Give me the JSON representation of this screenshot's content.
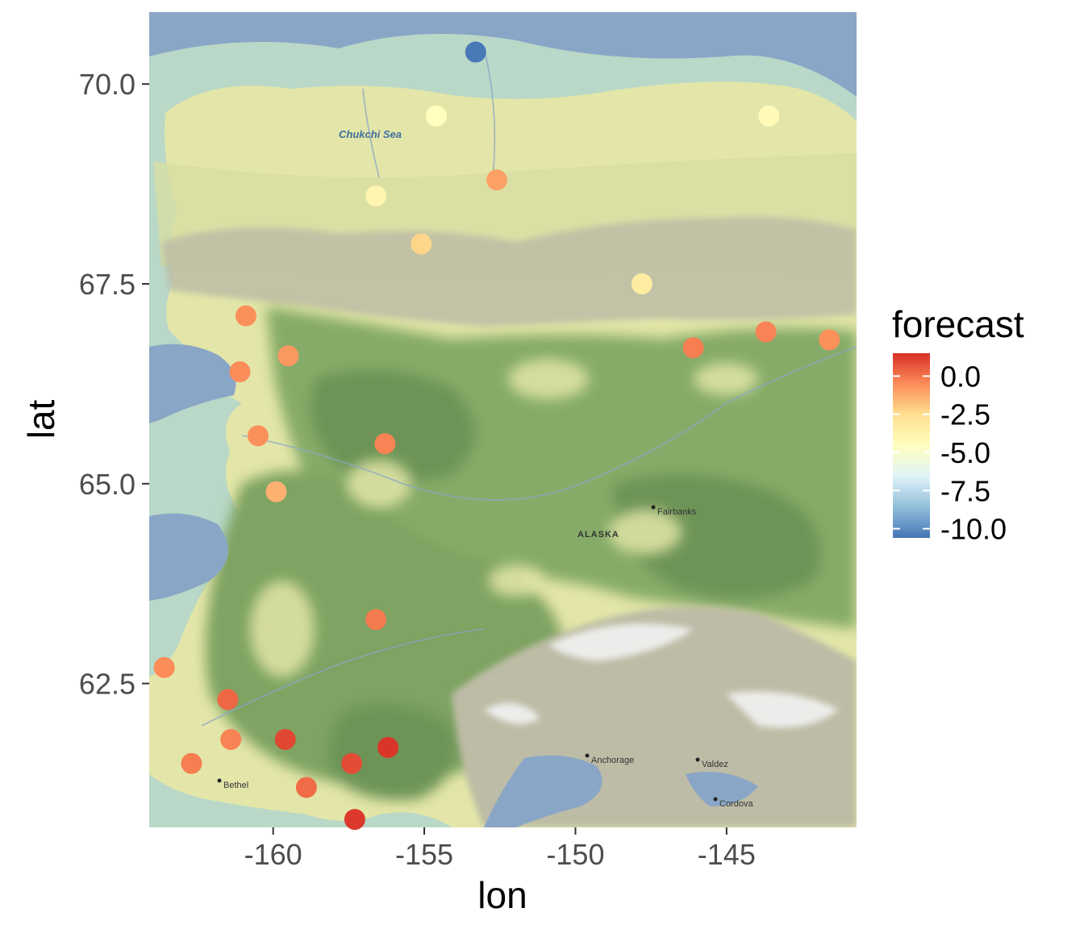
{
  "chart_data": {
    "type": "scatter",
    "xlabel": "lon",
    "ylabel": "lat",
    "xlim": [
      -164.1,
      -140.7
    ],
    "ylim": [
      60.7,
      70.9
    ],
    "x_ticks": [
      -160,
      -155,
      -150,
      -145
    ],
    "x_tick_labels": [
      "-160",
      "-155",
      "-150",
      "-145"
    ],
    "y_ticks": [
      62.5,
      65.0,
      67.5,
      70.0
    ],
    "y_tick_labels": [
      "62.5",
      "65.0",
      "67.5",
      "70.0"
    ],
    "grid": false,
    "legend": {
      "title": "forecast",
      "position": "right",
      "range": [
        -10.6,
        1.5
      ],
      "breaks": [
        0.0,
        -2.5,
        -5.0,
        -7.5,
        -10.0
      ],
      "break_labels": [
        "0.0",
        "-2.5",
        "-5.0",
        "-7.5",
        "-10.0"
      ],
      "colors": [
        "#4575b4",
        "#91bfdb",
        "#e0f3f8",
        "#ffffbf",
        "#fee090",
        "#fc8d59",
        "#d73027"
      ]
    },
    "points": [
      {
        "lon": -153.3,
        "lat": 70.4,
        "forecast": -10.5
      },
      {
        "lon": -154.6,
        "lat": 69.6,
        "forecast": -4.5
      },
      {
        "lon": -143.6,
        "lat": 69.6,
        "forecast": -4.2
      },
      {
        "lon": -152.6,
        "lat": 68.8,
        "forecast": -1.0
      },
      {
        "lon": -156.6,
        "lat": 68.6,
        "forecast": -3.9
      },
      {
        "lon": -155.1,
        "lat": 68.0,
        "forecast": -2.3
      },
      {
        "lon": -147.8,
        "lat": 67.5,
        "forecast": -3.3
      },
      {
        "lon": -160.9,
        "lat": 67.1,
        "forecast": -0.6
      },
      {
        "lon": -143.7,
        "lat": 66.9,
        "forecast": -0.3
      },
      {
        "lon": -141.6,
        "lat": 66.8,
        "forecast": -0.6
      },
      {
        "lon": -146.1,
        "lat": 66.7,
        "forecast": -0.2
      },
      {
        "lon": -159.5,
        "lat": 66.6,
        "forecast": -0.8
      },
      {
        "lon": -161.1,
        "lat": 66.4,
        "forecast": -0.5
      },
      {
        "lon": -160.5,
        "lat": 65.6,
        "forecast": -0.6
      },
      {
        "lon": -156.3,
        "lat": 65.5,
        "forecast": -0.3
      },
      {
        "lon": -159.9,
        "lat": 64.9,
        "forecast": -1.4
      },
      {
        "lon": -156.6,
        "lat": 63.3,
        "forecast": -0.1
      },
      {
        "lon": -163.6,
        "lat": 62.7,
        "forecast": -0.5
      },
      {
        "lon": -161.5,
        "lat": 62.3,
        "forecast": 0.3
      },
      {
        "lon": -161.4,
        "lat": 61.8,
        "forecast": -0.3
      },
      {
        "lon": -159.6,
        "lat": 61.8,
        "forecast": 1.0
      },
      {
        "lon": -156.2,
        "lat": 61.7,
        "forecast": 1.4
      },
      {
        "lon": -157.4,
        "lat": 61.5,
        "forecast": 0.9
      },
      {
        "lon": -162.7,
        "lat": 61.5,
        "forecast": -0.2
      },
      {
        "lon": -158.9,
        "lat": 61.2,
        "forecast": 0.2
      },
      {
        "lon": -157.3,
        "lat": 60.8,
        "forecast": 1.3
      }
    ]
  },
  "map_labels": {
    "sea": "Chukchi Sea",
    "state": "ALASKA",
    "fairbanks": "Fairbanks",
    "anchorage": "Anchorage",
    "valdez": "Valdez",
    "cordova": "Cordova",
    "bethel": "Bethel"
  },
  "colors": {
    "water": "#8aa6c6",
    "tundra": "#e3e6a8",
    "lowland": "#c9d890",
    "forest": "#86ab68",
    "dense_forest": "#6d9457",
    "mountain": "#bdbca6",
    "snow": "#f2f2f2",
    "coast_shallow": "#b9d8c8"
  }
}
